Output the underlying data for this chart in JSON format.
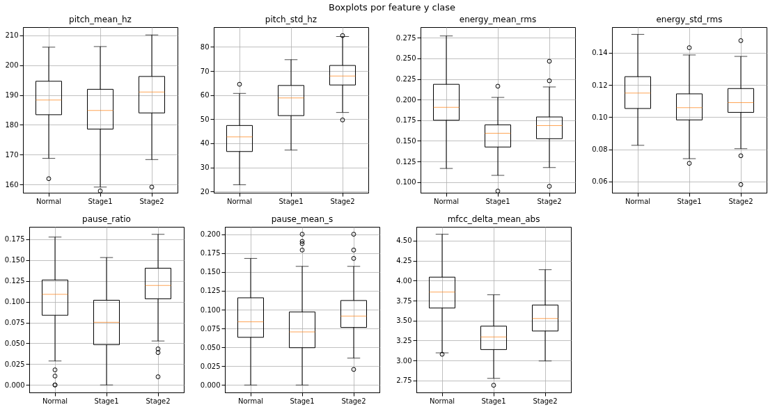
{
  "chart_data": [
    {
      "type": "box",
      "title": "pitch_mean_hz",
      "annotations": [
        "Boxplots por feature y clase"
      ],
      "categories": [
        "Normal",
        "Stage1",
        "Stage2"
      ],
      "boxes": [
        {
          "low": 168.8,
          "q1": 183.4,
          "median": 188.3,
          "q3": 194.6,
          "high": 206.0,
          "outliers": [
            162.0
          ]
        },
        {
          "low": 159.2,
          "q1": 178.6,
          "median": 184.8,
          "q3": 191.9,
          "high": 206.2,
          "outliers": [
            157.9
          ]
        },
        {
          "low": 168.4,
          "q1": 184.0,
          "median": 191.0,
          "q3": 196.2,
          "high": 210.1,
          "outliers": [
            159.2
          ]
        }
      ],
      "ylim": [
        157.3,
        212.7
      ],
      "yticks": [
        160,
        170,
        180,
        190,
        200,
        210
      ],
      "grid": true
    },
    {
      "type": "box",
      "title": "pitch_std_hz",
      "categories": [
        "Normal",
        "Stage1",
        "Stage2"
      ],
      "boxes": [
        {
          "low": 22.8,
          "q1": 36.6,
          "median": 42.7,
          "q3": 47.4,
          "high": 60.7,
          "outliers": [
            64.5
          ]
        },
        {
          "low": 37.2,
          "q1": 51.5,
          "median": 58.8,
          "q3": 64.0,
          "high": 74.7
        },
        {
          "low": 52.8,
          "q1": 64.2,
          "median": 67.9,
          "q3": 72.3,
          "high": 84.3,
          "outliers": [
            84.7,
            49.7
          ]
        }
      ],
      "ylim": [
        19.5,
        88.2
      ],
      "yticks": [
        20,
        30,
        40,
        50,
        60,
        70,
        80
      ],
      "grid": true
    },
    {
      "type": "box",
      "title": "energy_mean_rms",
      "categories": [
        "Normal",
        "Stage1",
        "Stage2"
      ],
      "boxes": [
        {
          "low": 0.1165,
          "q1": 0.175,
          "median": 0.1906,
          "q3": 0.2186,
          "high": 0.2773
        },
        {
          "low": 0.1081,
          "q1": 0.1425,
          "median": 0.1593,
          "q3": 0.1694,
          "high": 0.2027,
          "outliers": [
            0.2163,
            0.089
          ]
        },
        {
          "low": 0.1176,
          "q1": 0.1526,
          "median": 0.1685,
          "q3": 0.179,
          "high": 0.2154,
          "outliers": [
            0.2466,
            0.2229,
            0.0948
          ]
        }
      ],
      "ylim": [
        0.087,
        0.288
      ],
      "yticks": [
        {
          "value": 0.1,
          "label": "0.100"
        },
        0.125,
        {
          "value": 0.15,
          "label": "0.150"
        },
        0.175,
        {
          "value": 0.2,
          "label": "0.200"
        },
        0.225,
        {
          "value": 0.25,
          "label": "0.250"
        },
        0.275
      ],
      "grid": true
    },
    {
      "type": "box",
      "title": "energy_std_rms",
      "categories": [
        "Normal",
        "Stage1",
        "Stage2"
      ],
      "boxes": [
        {
          "low": 0.0825,
          "q1": 0.1054,
          "median": 0.115,
          "q3": 0.1252,
          "high": 0.1515
        },
        {
          "low": 0.0742,
          "q1": 0.0983,
          "median": 0.1059,
          "q3": 0.1145,
          "high": 0.1387,
          "outliers": [
            0.1432,
            0.0713
          ]
        },
        {
          "low": 0.0804,
          "q1": 0.103,
          "median": 0.109,
          "q3": 0.1178,
          "high": 0.1378,
          "outliers": [
            0.1476,
            0.076,
            0.0581
          ]
        }
      ],
      "ylim": [
        0.053,
        0.156
      ],
      "yticks": [
        0.06,
        0.08,
        {
          "value": 0.1,
          "label": "0.10"
        },
        0.12,
        0.14
      ],
      "grid": true
    },
    {
      "type": "box",
      "title": "pause_ratio",
      "categories": [
        "Normal",
        "Stage1",
        "Stage2"
      ],
      "boxes": [
        {
          "low": 0.0288,
          "q1": 0.0837,
          "median": 0.1089,
          "q3": 0.1261,
          "high": 0.1777,
          "outliers": [
            0.0181,
            0.0107,
            0.0,
            0.0
          ]
        },
        {
          "low": 0.0,
          "q1": 0.0484,
          "median": 0.0753,
          "q3": 0.1018,
          "high": 0.1531
        },
        {
          "low": 0.0528,
          "q1": 0.1035,
          "median": 0.1195,
          "q3": 0.1403,
          "high": 0.181,
          "outliers": [
            0.0433,
            0.0389,
            0.0098
          ]
        }
      ],
      "ylim": [
        -0.009,
        0.19
      ],
      "yticks": [
        {
          "value": 0,
          "label": "0.000"
        },
        0.025,
        {
          "value": 0.05,
          "label": "0.050"
        },
        0.075,
        {
          "value": 0.1,
          "label": "0.100"
        },
        0.125,
        {
          "value": 0.15,
          "label": "0.150"
        },
        0.175
      ],
      "grid": true
    },
    {
      "type": "box",
      "title": "pause_mean_s",
      "categories": [
        "Normal",
        "Stage1",
        "Stage2"
      ],
      "boxes": [
        {
          "low": 0.0,
          "q1": 0.0633,
          "median": 0.0839,
          "q3": 0.1157,
          "high": 0.1679
        },
        {
          "low": 0.0,
          "q1": 0.0495,
          "median": 0.0705,
          "q3": 0.097,
          "high": 0.1574,
          "outliers": [
            0.2,
            0.1905,
            0.1875,
            0.179
          ]
        },
        {
          "low": 0.0357,
          "q1": 0.0764,
          "median": 0.0915,
          "q3": 0.1121,
          "high": 0.1574,
          "outliers": [
            0.2,
            0.179,
            0.1679,
            0.0207
          ]
        }
      ],
      "ylim": [
        -0.0098,
        0.2098
      ],
      "yticks": [
        {
          "value": 0,
          "label": "0.000"
        },
        0.025,
        {
          "value": 0.05,
          "label": "0.050"
        },
        0.075,
        {
          "value": 0.1,
          "label": "0.100"
        },
        0.125,
        {
          "value": 0.15,
          "label": "0.150"
        },
        0.175,
        {
          "value": 0.2,
          "label": "0.200"
        }
      ],
      "grid": true
    },
    {
      "type": "box",
      "title": "mfcc_delta_mean_abs",
      "categories": [
        "Normal",
        "Stage1",
        "Stage2"
      ],
      "boxes": [
        {
          "low": 3.096,
          "q1": 3.657,
          "median": 3.858,
          "q3": 4.044,
          "high": 4.581,
          "outliers": [
            3.078
          ]
        },
        {
          "low": 2.776,
          "q1": 3.137,
          "median": 3.294,
          "q3": 3.43,
          "high": 3.823,
          "outliers": [
            2.69
          ]
        },
        {
          "low": 2.994,
          "q1": 3.369,
          "median": 3.526,
          "q3": 3.695,
          "high": 4.137
        }
      ],
      "ylim": [
        2.6,
        4.674
      ],
      "yticks": [
        2.75,
        {
          "value": 3,
          "label": "3.00"
        },
        3.25,
        {
          "value": 3.5,
          "label": "3.50"
        },
        3.75,
        {
          "value": 4,
          "label": "4.00"
        },
        4.25,
        {
          "value": 4.5,
          "label": "4.50"
        }
      ],
      "grid": true
    }
  ]
}
